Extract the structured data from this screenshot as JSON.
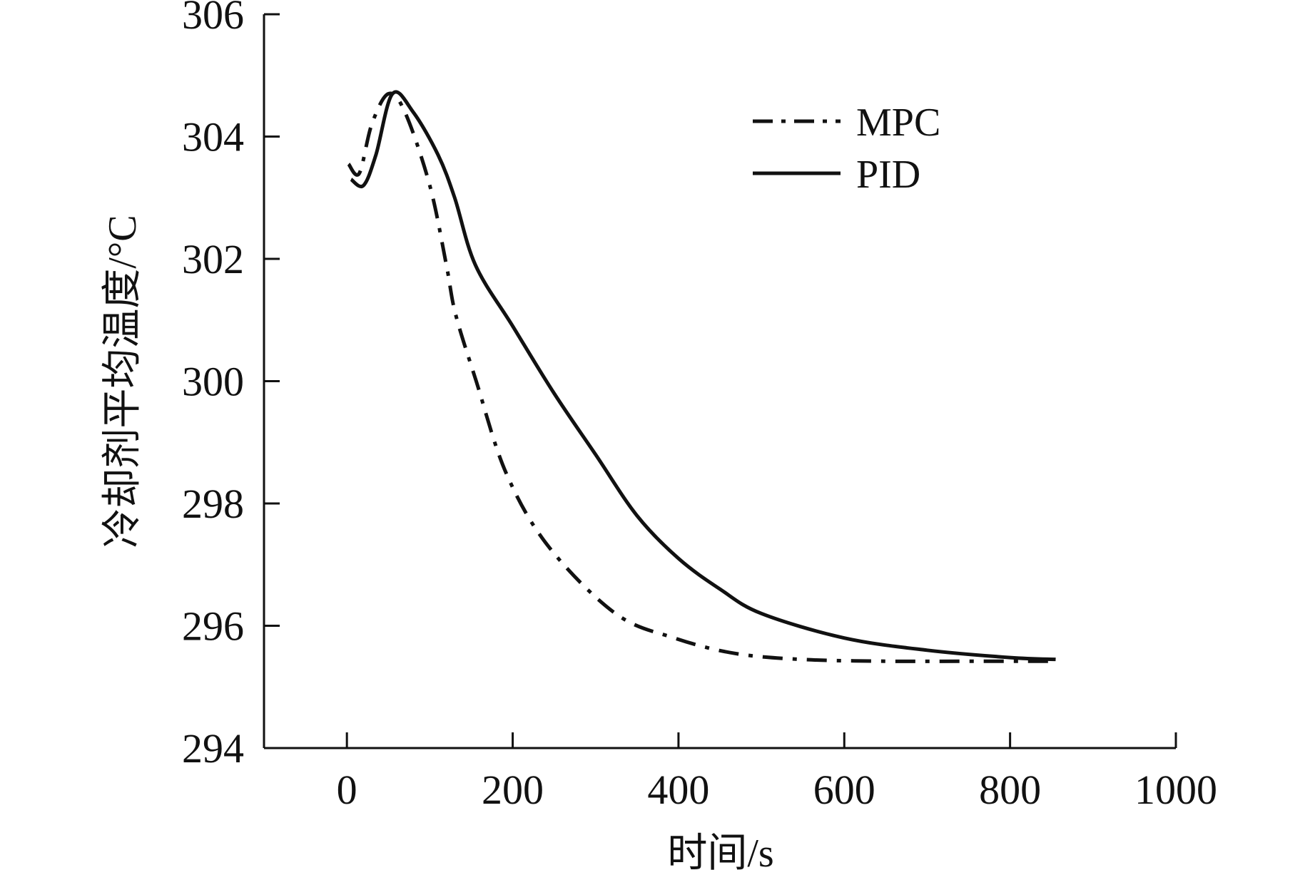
{
  "chart_data": {
    "type": "line",
    "title": "",
    "xlabel": "时间/s",
    "ylabel": "冷却剂平均温度/°C",
    "xlim": [
      -100,
      1000
    ],
    "ylim": [
      294,
      306
    ],
    "xticks": [
      0,
      200,
      400,
      600,
      800,
      1000
    ],
    "yticks": [
      294,
      296,
      298,
      300,
      302,
      304,
      306
    ],
    "xtick_labels": [
      "0",
      "200",
      "400",
      "600",
      "800",
      "1000"
    ],
    "ytick_labels": [
      "294",
      "296",
      "298",
      "300",
      "302",
      "304",
      "306"
    ],
    "grid": false,
    "legend_position": "top-right",
    "series": [
      {
        "name": "MPC",
        "style": "dash-dot",
        "color": "#111111",
        "x": [
          2,
          15,
          30,
          50,
          70,
          100,
          120,
          131,
          156,
          192,
          243,
          324,
          395,
          467,
          548,
          650,
          750,
          853
        ],
        "y": [
          303.55,
          303.4,
          304.2,
          304.7,
          304.4,
          303.2,
          301.9,
          301.1,
          300.0,
          298.5,
          297.3,
          296.2,
          295.8,
          295.55,
          295.45,
          295.42,
          295.42,
          295.42
        ]
      },
      {
        "name": "PID",
        "style": "solid",
        "color": "#111111",
        "x": [
          5,
          20,
          35,
          55,
          80,
          110,
          130,
          155,
          200,
          250,
          300,
          350,
          400,
          450,
          500,
          600,
          700,
          800,
          855
        ],
        "y": [
          303.3,
          303.2,
          303.7,
          304.7,
          304.4,
          303.7,
          303.0,
          301.9,
          300.9,
          299.8,
          298.8,
          297.8,
          297.1,
          296.6,
          296.2,
          295.8,
          295.6,
          295.48,
          295.45
        ]
      }
    ]
  }
}
